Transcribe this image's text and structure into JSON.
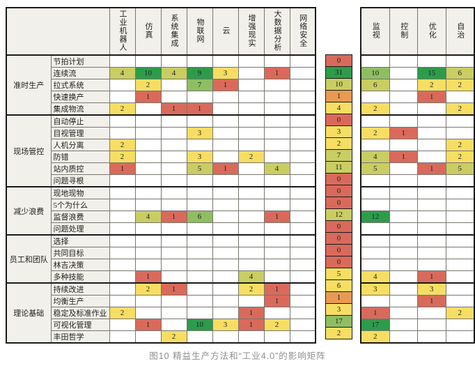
{
  "colors": {
    "red": "#D96A5B",
    "orange": "#E89A52",
    "yellow": "#F7DE62",
    "olive": "#C9CD62",
    "lightgreen": "#8FBE62",
    "green": "#2C9C4B",
    "header_bg": "#F2F0EA"
  },
  "chart_data": {
    "type": "heatmap",
    "title": "图10  精益生产方法和“工业4.0”的影响矩阵",
    "tech_columns": [
      "工业机器人",
      "仿真",
      "系统集成",
      "物联网",
      "云",
      "增强现实",
      "大数据分析",
      "网络安全"
    ],
    "level_columns": [
      "监视",
      "控制",
      "优化",
      "自治"
    ],
    "groups": [
      {
        "name": "准时生产",
        "rows": [
          {
            "label": "节拍计划",
            "tech": [
              null,
              null,
              null,
              null,
              null,
              null,
              null,
              null
            ],
            "total": {
              "v": 0,
              "c": "red"
            },
            "levels": [
              null,
              null,
              null,
              null
            ]
          },
          {
            "label": "连续流",
            "tech": [
              {
                "v": 4,
                "c": "olive"
              },
              {
                "v": 10,
                "c": "green"
              },
              {
                "v": 4,
                "c": "olive"
              },
              {
                "v": 9,
                "c": "green"
              },
              {
                "v": 3,
                "c": "yellow"
              },
              null,
              {
                "v": 1,
                "c": "red"
              },
              null
            ],
            "total": {
              "v": 31,
              "c": "green"
            },
            "levels": [
              {
                "v": 10,
                "c": "lightgreen"
              },
              null,
              {
                "v": 15,
                "c": "green"
              },
              {
                "v": 6,
                "c": "olive"
              }
            ]
          },
          {
            "label": "拉式系统",
            "tech": [
              null,
              {
                "v": 2,
                "c": "yellow"
              },
              null,
              {
                "v": 7,
                "c": "lightgreen"
              },
              {
                "v": 1,
                "c": "red"
              },
              null,
              null,
              null
            ],
            "total": {
              "v": 10,
              "c": "olive"
            },
            "levels": [
              {
                "v": 6,
                "c": "olive"
              },
              null,
              {
                "v": 2,
                "c": "yellow"
              },
              {
                "v": 2,
                "c": "yellow"
              }
            ]
          },
          {
            "label": "快速换产",
            "tech": [
              null,
              {
                "v": 1,
                "c": "red"
              },
              null,
              null,
              null,
              null,
              null,
              null
            ],
            "total": {
              "v": 1,
              "c": "orange"
            },
            "levels": [
              null,
              null,
              {
                "v": 1,
                "c": "red"
              },
              null
            ]
          },
          {
            "label": "集成物流",
            "tech": [
              {
                "v": 2,
                "c": "yellow"
              },
              null,
              {
                "v": 1,
                "c": "red"
              },
              {
                "v": 1,
                "c": "red"
              },
              null,
              null,
              null,
              null
            ],
            "total": {
              "v": 4,
              "c": "yellow"
            },
            "levels": [
              {
                "v": 2,
                "c": "yellow"
              },
              null,
              null,
              {
                "v": 2,
                "c": "yellow"
              }
            ]
          }
        ]
      },
      {
        "name": "现场管控",
        "rows": [
          {
            "label": "自动停止",
            "tech": [
              null,
              null,
              null,
              null,
              null,
              null,
              null,
              null
            ],
            "total": {
              "v": 0,
              "c": "red"
            },
            "levels": [
              null,
              null,
              null,
              null
            ]
          },
          {
            "label": "目视管理",
            "tech": [
              null,
              null,
              null,
              {
                "v": 3,
                "c": "yellow"
              },
              null,
              null,
              null,
              null
            ],
            "total": {
              "v": 3,
              "c": "yellow"
            },
            "levels": [
              {
                "v": 2,
                "c": "yellow"
              },
              {
                "v": 1,
                "c": "red"
              },
              null,
              null
            ]
          },
          {
            "label": "人机分离",
            "tech": [
              {
                "v": 2,
                "c": "yellow"
              },
              null,
              null,
              null,
              null,
              null,
              null,
              null
            ],
            "total": {
              "v": 2,
              "c": "yellow"
            },
            "levels": [
              null,
              null,
              null,
              {
                "v": 2,
                "c": "yellow"
              }
            ]
          },
          {
            "label": "防错",
            "tech": [
              {
                "v": 2,
                "c": "yellow"
              },
              null,
              null,
              {
                "v": 3,
                "c": "yellow"
              },
              null,
              {
                "v": 2,
                "c": "yellow"
              },
              null,
              null
            ],
            "total": {
              "v": 7,
              "c": "olive"
            },
            "levels": [
              {
                "v": 4,
                "c": "olive"
              },
              {
                "v": 1,
                "c": "red"
              },
              null,
              {
                "v": 2,
                "c": "yellow"
              }
            ]
          },
          {
            "label": "站内质控",
            "tech": [
              {
                "v": 1,
                "c": "red"
              },
              null,
              null,
              {
                "v": 5,
                "c": "olive"
              },
              {
                "v": 1,
                "c": "red"
              },
              null,
              {
                "v": 4,
                "c": "olive"
              },
              null
            ],
            "total": {
              "v": 11,
              "c": "olive"
            },
            "levels": [
              {
                "v": 5,
                "c": "olive"
              },
              null,
              {
                "v": 1,
                "c": "red"
              },
              {
                "v": 5,
                "c": "olive"
              }
            ]
          },
          {
            "label": "问题寻根",
            "tech": [
              null,
              null,
              null,
              null,
              null,
              null,
              null,
              null
            ],
            "total": {
              "v": 0,
              "c": "red"
            },
            "levels": [
              null,
              null,
              null,
              null
            ]
          }
        ]
      },
      {
        "name": "减少浪费",
        "rows": [
          {
            "label": "现地现物",
            "tech": [
              null,
              null,
              null,
              null,
              null,
              null,
              null,
              null
            ],
            "total": {
              "v": 0,
              "c": "red"
            },
            "levels": [
              null,
              null,
              null,
              null
            ]
          },
          {
            "label": "5个为什么",
            "tech": [
              null,
              null,
              null,
              null,
              null,
              null,
              null,
              null
            ],
            "total": {
              "v": 0,
              "c": "red"
            },
            "levels": [
              null,
              null,
              null,
              null
            ]
          },
          {
            "label": "监督浪费",
            "tech": [
              null,
              {
                "v": 4,
                "c": "olive"
              },
              {
                "v": 1,
                "c": "red"
              },
              {
                "v": 6,
                "c": "lightgreen"
              },
              null,
              null,
              {
                "v": 1,
                "c": "red"
              },
              null
            ],
            "total": {
              "v": 12,
              "c": "olive"
            },
            "levels": [
              {
                "v": 12,
                "c": "green"
              },
              null,
              null,
              null
            ]
          },
          {
            "label": "问题处理",
            "tech": [
              null,
              null,
              null,
              null,
              null,
              null,
              null,
              null
            ],
            "total": {
              "v": 0,
              "c": "red"
            },
            "levels": [
              null,
              null,
              null,
              null
            ]
          }
        ]
      },
      {
        "name": "员工和团队",
        "rows": [
          {
            "label": "选择",
            "tech": [
              null,
              null,
              null,
              null,
              null,
              null,
              null,
              null
            ],
            "total": {
              "v": 0,
              "c": "red"
            },
            "levels": [
              null,
              null,
              null,
              null
            ]
          },
          {
            "label": "共同目标",
            "tech": [
              null,
              null,
              null,
              null,
              null,
              null,
              null,
              null
            ],
            "total": {
              "v": 0,
              "c": "red"
            },
            "levels": [
              null,
              null,
              null,
              null
            ]
          },
          {
            "label": "林吉决策",
            "tech": [
              null,
              null,
              null,
              null,
              null,
              null,
              null,
              null
            ],
            "total": {
              "v": 0,
              "c": "red"
            },
            "levels": [
              null,
              null,
              null,
              null
            ]
          },
          {
            "label": "多种技能",
            "tech": [
              null,
              {
                "v": 1,
                "c": "red"
              },
              null,
              null,
              null,
              {
                "v": 4,
                "c": "olive"
              },
              null,
              null
            ],
            "total": {
              "v": 5,
              "c": "yellow"
            },
            "levels": [
              {
                "v": 4,
                "c": "yellow"
              },
              null,
              {
                "v": 1,
                "c": "red"
              },
              null
            ]
          }
        ]
      },
      {
        "name": "理论基础",
        "rows": [
          {
            "label": "持续改进",
            "tech": [
              null,
              {
                "v": 2,
                "c": "yellow"
              },
              {
                "v": 1,
                "c": "red"
              },
              null,
              null,
              {
                "v": 2,
                "c": "yellow"
              },
              {
                "v": 1,
                "c": "red"
              },
              null
            ],
            "total": {
              "v": 6,
              "c": "yellow"
            },
            "levels": [
              {
                "v": 3,
                "c": "yellow"
              },
              null,
              {
                "v": 3,
                "c": "yellow"
              },
              null
            ]
          },
          {
            "label": "均衡生产",
            "tech": [
              null,
              null,
              null,
              null,
              null,
              null,
              {
                "v": 1,
                "c": "red"
              },
              null
            ],
            "total": {
              "v": 1,
              "c": "orange"
            },
            "levels": [
              null,
              null,
              {
                "v": 1,
                "c": "red"
              },
              null
            ]
          },
          {
            "label": "稳定及标准作业",
            "tech": [
              {
                "v": 2,
                "c": "yellow"
              },
              null,
              null,
              null,
              null,
              {
                "v": 1,
                "c": "red"
              },
              null,
              null
            ],
            "total": {
              "v": 3,
              "c": "yellow"
            },
            "levels": [
              {
                "v": 1,
                "c": "red"
              },
              null,
              null,
              {
                "v": 2,
                "c": "yellow"
              }
            ]
          },
          {
            "label": "可视化管理",
            "tech": [
              null,
              {
                "v": 1,
                "c": "red"
              },
              null,
              {
                "v": 10,
                "c": "green"
              },
              {
                "v": 3,
                "c": "yellow"
              },
              {
                "v": 1,
                "c": "red"
              },
              {
                "v": 2,
                "c": "yellow"
              },
              null
            ],
            "total": {
              "v": 17,
              "c": "lightgreen"
            },
            "levels": [
              {
                "v": 17,
                "c": "green"
              },
              null,
              null,
              null
            ]
          },
          {
            "label": "丰田哲学",
            "tech": [
              null,
              null,
              {
                "v": 2,
                "c": "yellow"
              },
              null,
              null,
              null,
              null,
              null
            ],
            "total": {
              "v": 2,
              "c": "yellow"
            },
            "levels": [
              {
                "v": 2,
                "c": "yellow"
              },
              null,
              null,
              null
            ]
          }
        ]
      }
    ]
  }
}
